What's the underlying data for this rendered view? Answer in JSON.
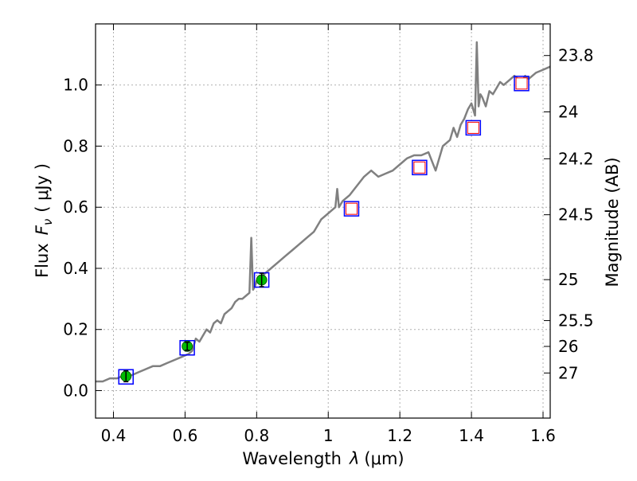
{
  "chart_data": {
    "type": "line",
    "xlabel": "Wavelength",
    "xlabel_symbol": "λ",
    "xlabel_unit": "(μm)",
    "ylabel": "Flux",
    "ylabel_symbol": "F",
    "ylabel_subscript": "ν",
    "ylabel_unit": "( μJy )",
    "ylabel_right": "Magnitude (AB)",
    "xlim": [
      0.35,
      1.62
    ],
    "ylim": [
      -0.09,
      1.2
    ],
    "grid": true,
    "x_ticks": [
      {
        "value": 0.4,
        "label": "0.4"
      },
      {
        "value": 0.6,
        "label": "0.6"
      },
      {
        "value": 0.8,
        "label": "0.8"
      },
      {
        "value": 1.0,
        "label": "1"
      },
      {
        "value": 1.2,
        "label": "1.2"
      },
      {
        "value": 1.4,
        "label": "1.4"
      },
      {
        "value": 1.6,
        "label": "1.6"
      }
    ],
    "y_ticks": [
      {
        "value": 0.0,
        "label": "0.0"
      },
      {
        "value": 0.2,
        "label": "0.2"
      },
      {
        "value": 0.4,
        "label": "0.4"
      },
      {
        "value": 0.6,
        "label": "0.6"
      },
      {
        "value": 0.8,
        "label": "0.8"
      },
      {
        "value": 1.0,
        "label": "1.0"
      }
    ],
    "mag_ticks": [
      {
        "value": 23.8,
        "label": "23.8"
      },
      {
        "value": 24,
        "label": "24"
      },
      {
        "value": 24.2,
        "label": "24.2"
      },
      {
        "value": 24.5,
        "label": "24.5"
      },
      {
        "value": 25,
        "label": "25"
      },
      {
        "value": 25.5,
        "label": "25.5"
      },
      {
        "value": 26,
        "label": "26"
      },
      {
        "value": 27,
        "label": "27"
      }
    ],
    "model_spectrum": {
      "color": "#808080",
      "x": [
        0.35,
        0.37,
        0.39,
        0.41,
        0.43,
        0.45,
        0.47,
        0.49,
        0.51,
        0.53,
        0.55,
        0.57,
        0.59,
        0.61,
        0.62,
        0.63,
        0.64,
        0.65,
        0.66,
        0.67,
        0.68,
        0.69,
        0.7,
        0.71,
        0.72,
        0.73,
        0.74,
        0.75,
        0.76,
        0.77,
        0.78,
        0.785,
        0.79,
        0.795,
        0.8,
        0.82,
        0.84,
        0.86,
        0.88,
        0.9,
        0.92,
        0.94,
        0.96,
        0.98,
        1.0,
        1.02,
        1.025,
        1.03,
        1.04,
        1.06,
        1.08,
        1.1,
        1.12,
        1.14,
        1.16,
        1.18,
        1.2,
        1.22,
        1.24,
        1.26,
        1.28,
        1.3,
        1.32,
        1.34,
        1.35,
        1.36,
        1.37,
        1.38,
        1.39,
        1.4,
        1.41,
        1.415,
        1.42,
        1.425,
        1.43,
        1.44,
        1.45,
        1.46,
        1.47,
        1.48,
        1.49,
        1.5,
        1.52,
        1.54,
        1.55,
        1.56,
        1.58,
        1.6,
        1.62
      ],
      "y": [
        0.03,
        0.03,
        0.04,
        0.04,
        0.05,
        0.05,
        0.06,
        0.07,
        0.08,
        0.08,
        0.09,
        0.1,
        0.11,
        0.12,
        0.13,
        0.17,
        0.16,
        0.18,
        0.2,
        0.19,
        0.22,
        0.23,
        0.22,
        0.25,
        0.26,
        0.27,
        0.29,
        0.3,
        0.3,
        0.31,
        0.32,
        0.5,
        0.33,
        0.34,
        0.36,
        0.38,
        0.4,
        0.42,
        0.44,
        0.46,
        0.48,
        0.5,
        0.52,
        0.56,
        0.58,
        0.6,
        0.66,
        0.6,
        0.62,
        0.64,
        0.67,
        0.7,
        0.72,
        0.7,
        0.71,
        0.72,
        0.74,
        0.76,
        0.77,
        0.77,
        0.78,
        0.72,
        0.8,
        0.82,
        0.86,
        0.83,
        0.87,
        0.89,
        0.92,
        0.94,
        0.9,
        1.14,
        0.93,
        0.97,
        0.96,
        0.93,
        0.98,
        0.97,
        0.99,
        1.01,
        1.0,
        1.01,
        1.03,
        1.01,
        1.03,
        1.02,
        1.04,
        1.05,
        1.06
      ]
    },
    "photometry": [
      {
        "x": 0.435,
        "model": 0.045,
        "observed": 0.047,
        "err": 0.018
      },
      {
        "x": 0.606,
        "model": 0.14,
        "observed": 0.145,
        "err": 0.013
      },
      {
        "x": 0.814,
        "model": 0.362,
        "observed": 0.362,
        "err": 0.022
      },
      {
        "x": 1.065,
        "model": 0.595,
        "observed": null,
        "err": null
      },
      {
        "x": 1.255,
        "model": 0.73,
        "observed": null,
        "err": null
      },
      {
        "x": 1.405,
        "model": 0.86,
        "observed": null,
        "err": null
      },
      {
        "x": 1.54,
        "model": 1.005,
        "observed": null,
        "err": null
      }
    ],
    "colors": {
      "model_box": "#0000ff",
      "observed": "#00bb00",
      "red_square": "#ff0000",
      "grid": "#b0b0b0"
    }
  }
}
